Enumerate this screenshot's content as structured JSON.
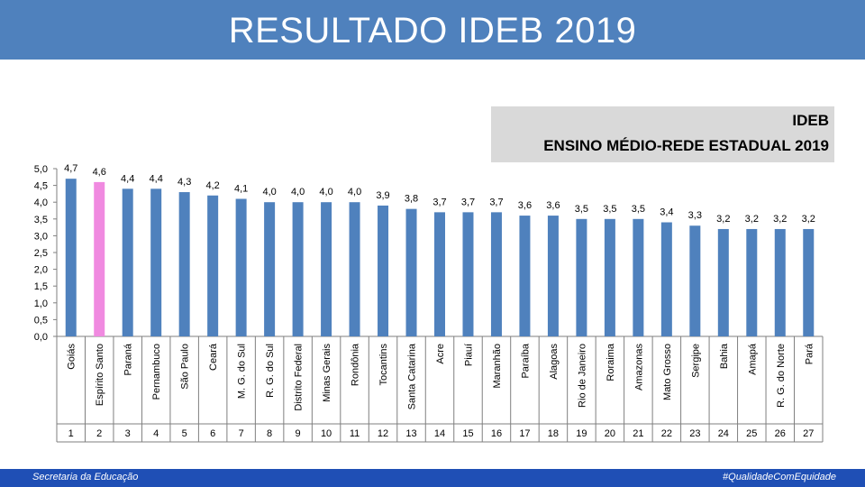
{
  "header": {
    "title": "RESULTADO IDEB 2019"
  },
  "legend": {
    "line1": "IDEB",
    "line2": "ENSINO MÉDIO-REDE ESTADUAL 2019"
  },
  "footer": {
    "left": "Secretaria  da Educação",
    "right": "#QualidadeComEquidade"
  },
  "colors": {
    "bar": "#4f81bd",
    "highlight": "#f08ae0",
    "header": "#4f81bd",
    "footer": "#1f4fb5"
  },
  "chart_data": {
    "type": "bar",
    "categories": [
      "Goiás",
      "Espírito Santo",
      "Paraná",
      "Pernambuco",
      "São Paulo",
      "Ceará",
      "M. G. do Sul",
      "R. G. do Sul",
      "Distrito Federal",
      "Minas Gerais",
      "Rondônia",
      "Tocantins",
      "Santa Catarina",
      "Acre",
      "Piauí",
      "Maranhão",
      "Paraíba",
      "Alagoas",
      "Rio de Janeiro",
      "Roraima",
      "Amazonas",
      "Mato Grosso",
      "Sergipe",
      "Bahia",
      "Amapá",
      "R. G. do Norte",
      "Pará"
    ],
    "ranks": [
      "1",
      "2",
      "3",
      "4",
      "5",
      "6",
      "7",
      "8",
      "9",
      "10",
      "11",
      "12",
      "13",
      "14",
      "15",
      "16",
      "17",
      "18",
      "19",
      "20",
      "21",
      "22",
      "23",
      "24",
      "25",
      "26",
      "27"
    ],
    "values": [
      4.7,
      4.6,
      4.4,
      4.4,
      4.3,
      4.2,
      4.1,
      4.0,
      4.0,
      4.0,
      4.0,
      3.9,
      3.8,
      3.7,
      3.7,
      3.7,
      3.6,
      3.6,
      3.5,
      3.5,
      3.5,
      3.4,
      3.3,
      3.2,
      3.2,
      3.2,
      3.2
    ],
    "value_labels": [
      "4,7",
      "4,6",
      "4,4",
      "4,4",
      "4,3",
      "4,2",
      "4,1",
      "4,0",
      "4,0",
      "4,0",
      "4,0",
      "3,9",
      "3,8",
      "3,7",
      "3,7",
      "3,7",
      "3,6",
      "3,6",
      "3,5",
      "3,5",
      "3,5",
      "3,4",
      "3,3",
      "3,2",
      "3,2",
      "3,2",
      "3,2"
    ],
    "highlight_index": 1,
    "ylim": [
      0,
      5
    ],
    "yticks": [
      "0,0",
      "0,5",
      "1,0",
      "1,5",
      "2,0",
      "2,5",
      "3,0",
      "3,5",
      "4,0",
      "4,5",
      "5,0"
    ],
    "grid": false,
    "title": "",
    "xlabel": "",
    "ylabel": ""
  }
}
